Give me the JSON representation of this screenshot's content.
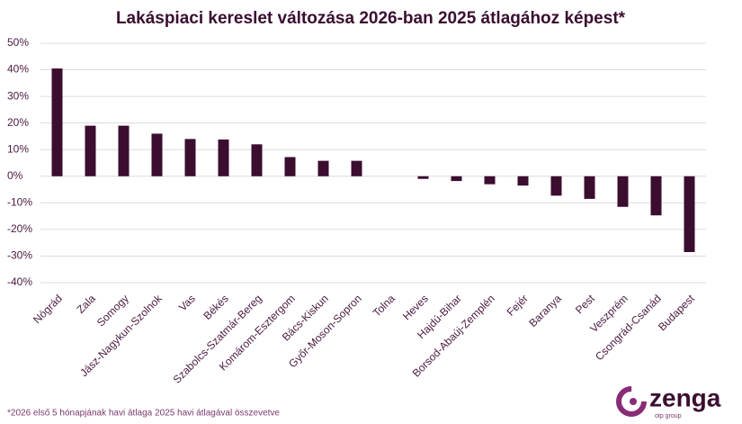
{
  "chart_data": {
    "type": "bar",
    "title": "Lakáspiaci kereslet változása 2026-ban 2025 átlagához képest*",
    "categories": [
      "Nógrád",
      "Zala",
      "Somogy",
      "Jász-Nagykun-Szolnok",
      "Vas",
      "Békés",
      "Szabolcs-Szatmár-Bereg",
      "Komárom-Esztergom",
      "Bács-Kiskun",
      "Győr-Moson-Sopron",
      "Tolna",
      "Heves",
      "Hajdú-Bihar",
      "Borsod-Abaúj-Zemplén",
      "Fejér",
      "Baranya",
      "Pest",
      "Veszprém",
      "Csongrád-Csanád",
      "Budapest"
    ],
    "values": [
      40.5,
      19,
      19,
      16,
      14,
      13.8,
      12,
      7.2,
      5.8,
      5.8,
      0,
      -1,
      -1.8,
      -3,
      -3.5,
      -7.3,
      -8.5,
      -11.5,
      -14.7,
      -28.5
    ],
    "color": "#3b0d2f",
    "ylim": [
      -40,
      50
    ],
    "yticks": [
      {
        "value": -40,
        "label": "-40%"
      },
      {
        "value": -30,
        "label": "-30%"
      },
      {
        "value": -20,
        "label": "-20%"
      },
      {
        "value": -10,
        "label": "-10%"
      },
      {
        "value": 0,
        "label": "0%"
      },
      {
        "value": 10,
        "label": "10%"
      },
      {
        "value": 20,
        "label": "20%"
      },
      {
        "value": 30,
        "label": "30%"
      },
      {
        "value": 40,
        "label": "40%"
      },
      {
        "value": 50,
        "label": "50%"
      }
    ],
    "grid": true,
    "footnote": "*2026 első 5 hónapjának havi átlaga 2025 havi átlagával összevetve"
  },
  "logo": {
    "name": "zenga",
    "tagline": "otp group"
  }
}
